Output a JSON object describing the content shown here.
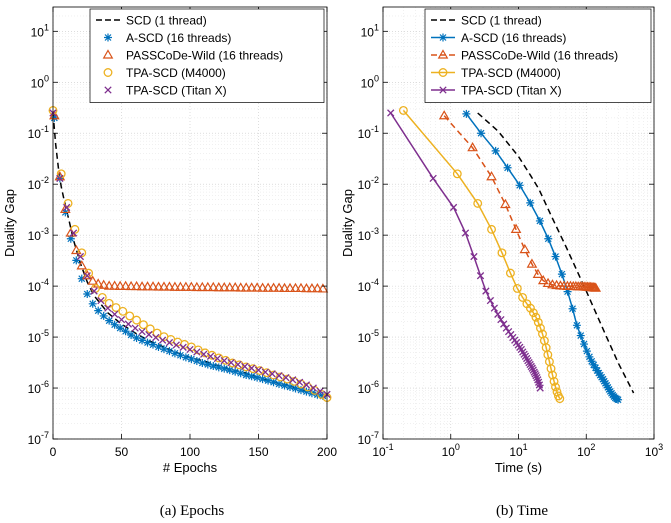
{
  "colors": {
    "scd": "#000000",
    "ascd": "#0072BD",
    "passcode": "#D95319",
    "tpa_m4000": "#EDB120",
    "tpa_titanx": "#7E2F8E"
  },
  "legend_labels": [
    "SCD (1 thread)",
    "A-SCD (16 threads)",
    "PASSCoDe-Wild (16 threads)",
    "TPA-SCD (M4000)",
    "TPA-SCD (Titan X)"
  ],
  "chart_data": [
    {
      "type": "scatter",
      "caption": "(a) Epochs",
      "xlabel": "# Epochs",
      "ylabel": "Duality Gap",
      "xscale": "linear",
      "yscale": "log",
      "xlim": [
        0,
        200
      ],
      "ylim": [
        1e-07,
        30
      ],
      "xticks": [
        0,
        50,
        100,
        150,
        200
      ],
      "xtick_labels": [
        "0",
        "50",
        "100",
        "150",
        "200"
      ],
      "ytick_exponents": [
        -7,
        -6,
        -5,
        -4,
        -3,
        -2,
        -1,
        0,
        1
      ],
      "grid": true,
      "legend_position": "top-right",
      "series": [
        {
          "name": "SCD (1 thread)",
          "style": "dashed",
          "x": [
            0,
            2,
            4,
            6,
            8,
            10,
            12,
            15,
            20,
            25,
            30,
            40,
            50,
            60,
            70,
            80,
            90,
            100,
            110,
            120,
            130,
            140,
            150,
            160,
            170,
            180,
            190,
            200
          ],
          "y": [
            0.25,
            0.06,
            0.02,
            0.009,
            0.005,
            0.003,
            0.0018,
            0.0008,
            0.00028,
            0.00012,
            6.5e-05,
            3e-05,
            1.8e-05,
            1.2e-05,
            8.5e-06,
            6.5e-06,
            5e-06,
            4e-06,
            3.4e-06,
            2.8e-06,
            2.3e-06,
            2e-06,
            1.6e-06,
            1.35e-06,
            1.15e-06,
            9.5e-07,
            8e-07,
            6.5e-07
          ]
        },
        {
          "name": "A-SCD (16 threads)",
          "marker": "asterisk",
          "x": [
            1,
            5,
            9,
            13,
            17,
            21,
            25,
            29,
            33,
            37,
            41,
            45,
            49,
            53,
            57,
            61,
            65,
            69,
            73,
            77,
            81,
            85,
            89,
            93,
            97,
            101,
            105,
            109,
            113,
            117,
            121,
            125,
            129,
            133,
            137,
            141,
            145,
            149,
            153,
            157,
            161,
            165,
            169,
            173,
            177,
            181,
            185,
            189,
            193,
            197
          ],
          "y": [
            0.2,
            0.013,
            0.0028,
            0.00085,
            0.00032,
            0.00014,
            7e-05,
            4.5e-05,
            3.3e-05,
            2.6e-05,
            2.1e-05,
            1.75e-05,
            1.5e-05,
            1.3e-05,
            1.1e-05,
            9.6e-06,
            8.6e-06,
            7.8e-06,
            7.1e-06,
            6.4e-06,
            5.8e-06,
            5.3e-06,
            4.8e-06,
            4.4e-06,
            4e-06,
            3.7e-06,
            3.4e-06,
            3.1e-06,
            2.9e-06,
            2.7e-06,
            2.55e-06,
            2.4e-06,
            2.25e-06,
            2.1e-06,
            1.95e-06,
            1.8e-06,
            1.7e-06,
            1.6e-06,
            1.5e-06,
            1.4e-06,
            1.3e-06,
            1.2e-06,
            1.12e-06,
            1.05e-06,
            9.8e-07,
            9.1e-07,
            8.5e-07,
            7.9e-07,
            7.4e-07,
            7e-07
          ]
        },
        {
          "name": "PASSCoDe-Wild (16 threads)",
          "marker": "triangle",
          "x": [
            1,
            5,
            9,
            13,
            17,
            21,
            25,
            29,
            33,
            37,
            41,
            45,
            49,
            53,
            57,
            61,
            65,
            69,
            73,
            77,
            81,
            85,
            89,
            93,
            97,
            101,
            105,
            109,
            113,
            117,
            121,
            125,
            129,
            133,
            137,
            141,
            145,
            149,
            153,
            157,
            161,
            165,
            169,
            173,
            177,
            181,
            185,
            189,
            193,
            197
          ],
          "y": [
            0.22,
            0.014,
            0.0032,
            0.0011,
            0.0005,
            0.00025,
            0.00016,
            0.000125,
            0.00011,
            0.000104,
            0.0001,
            0.0001,
            9.9e-05,
            9.9e-05,
            9.8e-05,
            9.8e-05,
            9.7e-05,
            9.7e-05,
            9.7e-05,
            9.6e-05,
            9.6e-05,
            9.6e-05,
            9.5e-05,
            9.5e-05,
            9.5e-05,
            9.5e-05,
            9.4e-05,
            9.4e-05,
            9.4e-05,
            9.4e-05,
            9.3e-05,
            9.3e-05,
            9.3e-05,
            9.3e-05,
            9.2e-05,
            9.2e-05,
            9.2e-05,
            9.2e-05,
            9.1e-05,
            9.1e-05,
            9.1e-05,
            9.1e-05,
            9e-05,
            9e-05,
            9e-05,
            9e-05,
            8.9e-05,
            8.9e-05,
            8.9e-05,
            8.8e-05
          ]
        },
        {
          "name": "TPA-SCD (M4000)",
          "marker": "circle",
          "x": [
            0,
            6,
            11,
            16,
            21,
            26,
            31,
            36,
            41,
            46,
            51,
            56,
            61,
            66,
            71,
            76,
            81,
            86,
            91,
            96,
            101,
            106,
            111,
            116,
            121,
            126,
            131,
            136,
            141,
            146,
            151,
            156,
            161,
            166,
            171,
            176,
            181,
            186,
            191,
            196,
            200
          ],
          "y": [
            0.28,
            0.016,
            0.0042,
            0.0013,
            0.00045,
            0.00018,
            9e-05,
            6e-05,
            4.6e-05,
            3.8e-05,
            3.2e-05,
            2.6e-05,
            2.15e-05,
            1.75e-05,
            1.45e-05,
            1.2e-05,
            1.02e-05,
            9e-06,
            8e-06,
            7.2e-06,
            6.4e-06,
            5.6e-06,
            4.9e-06,
            4.4e-06,
            3.9e-06,
            3.5e-06,
            3.1e-06,
            2.85e-06,
            2.6e-06,
            2.4e-06,
            2.2e-06,
            2e-06,
            1.8e-06,
            1.65e-06,
            1.5e-06,
            1.35e-06,
            1.2e-06,
            1.05e-06,
            9e-07,
            7.5e-07,
            6.5e-07
          ]
        },
        {
          "name": "TPA-SCD (Titan X)",
          "marker": "x",
          "x": [
            0,
            5,
            10,
            15,
            20,
            25,
            30,
            35,
            40,
            45,
            50,
            55,
            60,
            65,
            70,
            75,
            80,
            85,
            90,
            95,
            100,
            105,
            110,
            115,
            120,
            125,
            130,
            135,
            140,
            145,
            150,
            155,
            160,
            165,
            170,
            175,
            180,
            185,
            190,
            195,
            200
          ],
          "y": [
            0.25,
            0.013,
            0.0035,
            0.0011,
            0.00038,
            0.00016,
            8e-05,
            5.2e-05,
            3.7e-05,
            2.8e-05,
            2.2e-05,
            1.8e-05,
            1.5e-05,
            1.28e-05,
            1.12e-05,
            9.8e-06,
            8.7e-06,
            7.8e-06,
            7e-06,
            6.3e-06,
            5.7e-06,
            5.1e-06,
            4.6e-06,
            4.2e-06,
            3.8e-06,
            3.45e-06,
            3.15e-06,
            2.9e-06,
            2.65e-06,
            2.45e-06,
            2.25e-06,
            2.05e-06,
            1.9e-06,
            1.75e-06,
            1.6e-06,
            1.45e-06,
            1.3e-06,
            1.15e-06,
            1e-06,
            8.7e-07,
            7.5e-07
          ]
        }
      ]
    },
    {
      "type": "line",
      "caption": "(b) Time",
      "xlabel": "Time (s)",
      "ylabel": "Duality Gap",
      "xscale": "log",
      "yscale": "log",
      "xlim": [
        0.1,
        1000
      ],
      "ylim": [
        1e-07,
        30
      ],
      "xtick_exponents": [
        -1,
        0,
        1,
        2,
        3
      ],
      "ytick_exponents": [
        -7,
        -6,
        -5,
        -4,
        -3,
        -2,
        -1,
        0,
        1
      ],
      "grid": true,
      "legend_position": "top-right",
      "series": [
        {
          "name": "SCD (1 thread)",
          "style": "dashed",
          "x": [
            2.5,
            5,
            10,
            15,
            20,
            30,
            50,
            100,
            200,
            300,
            500
          ],
          "y": [
            0.25,
            0.11,
            0.035,
            0.015,
            0.008,
            0.0025,
            0.0006,
            8e-05,
            1e-05,
            3e-06,
            8e-07
          ]
        },
        {
          "name": "A-SCD (16 threads)",
          "marker": "asterisk",
          "x": [
            1.7,
            2.8,
            4.6,
            6.9,
            10.4,
            14.9,
            20.7,
            27.5,
            35.2,
            43.7,
            53,
            62.8,
            72.8,
            82.9,
            92.7,
            102.2,
            111.4,
            120.2,
            128.8,
            137,
            145.1,
            153,
            160.8,
            168.5,
            176.3,
            184.1,
            192,
            200.1,
            208.5,
            217.2,
            226.3,
            235.9,
            246,
            256.9,
            268.5,
            281.2,
            295
          ],
          "y": [
            0.24,
            0.1,
            0.045,
            0.021,
            0.0095,
            0.0043,
            0.0019,
            0.00085,
            0.00038,
            0.000172,
            7.8e-05,
            3.6e-05,
            1.7e-05,
            1.07e-05,
            7.3e-06,
            5.3e-06,
            4.1e-06,
            3.35e-06,
            2.85e-06,
            2.5e-06,
            2.2e-06,
            1.97e-06,
            1.79e-06,
            1.63e-06,
            1.49e-06,
            1.36e-06,
            1.24e-06,
            1.13e-06,
            1.03e-06,
            9.4e-07,
            8.6e-07,
            7.9e-07,
            7.3e-07,
            6.8e-07,
            6.4e-07,
            6.1e-07,
            5.9e-07
          ]
        },
        {
          "name": "PASSCoDe-Wild (16 threads)",
          "marker": "triangle",
          "style": "dashed",
          "x": [
            0.8,
            2.1,
            4,
            6.4,
            9.2,
            12.4,
            15.8,
            19.4,
            23.2,
            27.3,
            31.7,
            36.5,
            41.6,
            47,
            52.7,
            58.5,
            64.3,
            70.2,
            76,
            81.8,
            87.6,
            93.3,
            99,
            104.7,
            110.3,
            115.9,
            121.5,
            127,
            132.5,
            138
          ],
          "y": [
            0.22,
            0.052,
            0.014,
            0.004,
            0.0013,
            0.00052,
            0.00027,
            0.00017,
            0.000128,
            0.000113,
            0.000106,
            0.000103,
            0.000101,
            0.0001,
            9.9e-05,
            9.9e-05,
            9.8e-05,
            9.8e-05,
            9.7e-05,
            9.7e-05,
            9.7e-05,
            9.6e-05,
            9.6e-05,
            9.5e-05,
            9.5e-05,
            9.4e-05,
            9.4e-05,
            9.3e-05,
            9.2e-05,
            9.1e-05
          ]
        },
        {
          "name": "TPA-SCD (M4000)",
          "marker": "circle",
          "x": [
            0.2,
            1.25,
            2.5,
            4,
            5.7,
            7.6,
            9.6,
            11.5,
            13.3,
            15,
            16.6,
            18.1,
            19.6,
            21.1,
            22.6,
            24.1,
            25.6,
            27.1,
            28.6,
            30.2,
            31.8,
            33.5,
            35.2,
            37,
            38.8,
            40.7
          ],
          "y": [
            0.28,
            0.016,
            0.0042,
            0.0013,
            0.00045,
            0.00018,
            9e-05,
            6e-05,
            4.5e-05,
            3.7e-05,
            3e-05,
            2.45e-05,
            1.95e-05,
            1.5e-05,
            1.15e-05,
            8.5e-06,
            6.2e-06,
            4.5e-06,
            3.3e-06,
            2.4e-06,
            1.8e-06,
            1.35e-06,
            1.05e-06,
            8.4e-07,
            7e-07,
            6.2e-07
          ]
        },
        {
          "name": "TPA-SCD (Titan X)",
          "marker": "x",
          "x": [
            0.13,
            0.55,
            1.1,
            1.65,
            2.2,
            2.75,
            3.3,
            3.85,
            4.4,
            4.95,
            5.5,
            6.05,
            6.6,
            7.15,
            7.7,
            8.25,
            8.8,
            9.35,
            9.9,
            10.45,
            11,
            11.55,
            12.1,
            12.65,
            13.2,
            13.75,
            14.3,
            14.85,
            15.4,
            15.95,
            16.5,
            17.05,
            17.6,
            18.15,
            18.7,
            19.25,
            19.8,
            20.35,
            20.9
          ],
          "y": [
            0.25,
            0.013,
            0.0035,
            0.0011,
            0.00038,
            0.00016,
            8e-05,
            5.2e-05,
            3.7e-05,
            2.8e-05,
            2.2e-05,
            1.8e-05,
            1.5e-05,
            1.28e-05,
            1.12e-05,
            9.8e-06,
            8.7e-06,
            7.8e-06,
            7e-06,
            6.3e-06,
            5.7e-06,
            5.1e-06,
            4.6e-06,
            4.2e-06,
            3.8e-06,
            3.45e-06,
            3.15e-06,
            2.9e-06,
            2.65e-06,
            2.45e-06,
            2.25e-06,
            2.05e-06,
            1.9e-06,
            1.75e-06,
            1.6e-06,
            1.45e-06,
            1.3e-06,
            1.15e-06,
            1e-06
          ]
        }
      ]
    }
  ]
}
